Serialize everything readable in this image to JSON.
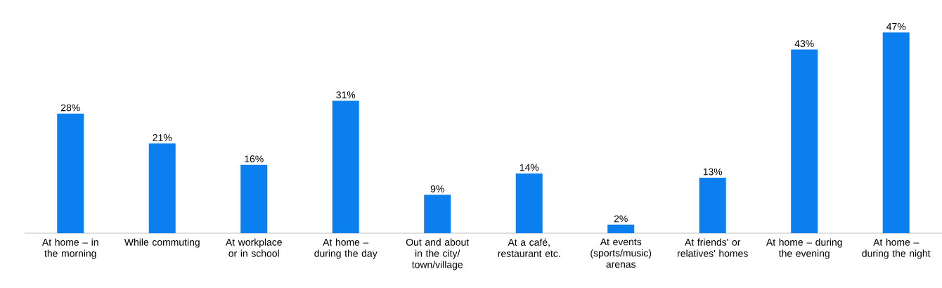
{
  "chart_data": {
    "type": "bar",
    "categories": [
      "At home – in the morning",
      "While commuting",
      "At workplace or in school",
      "At home – during the day",
      "Out and about in the city/ town/village",
      "At a café, restaurant etc.",
      "At events (sports/music) arenas",
      "At friends' or relatives' homes",
      "At home – during the evening",
      "At home – during the night"
    ],
    "values": [
      28,
      21,
      16,
      31,
      9,
      14,
      2,
      13,
      43,
      47
    ],
    "value_labels": [
      "28%",
      "21%",
      "16%",
      "31%",
      "9%",
      "14%",
      "2%",
      "13%",
      "43%",
      "47%"
    ],
    "color": "#0b7ff0"
  }
}
